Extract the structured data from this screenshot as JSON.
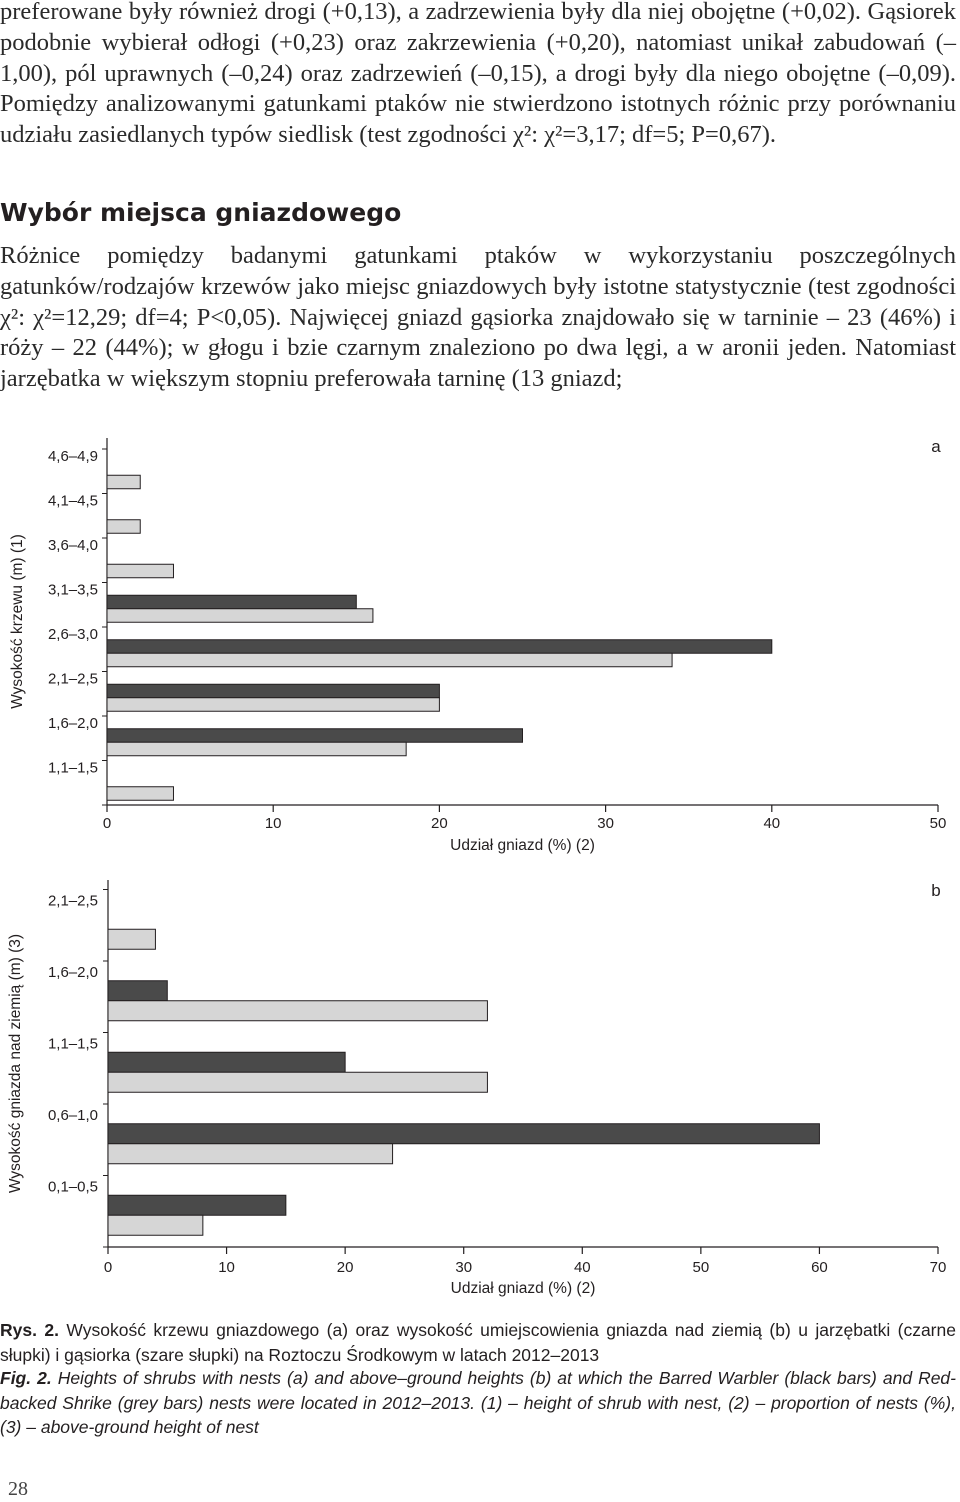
{
  "text": {
    "para1": "preferowane były również drogi (+0,13), a zadrzewienia były dla niej obojętne (+0,02). Gąsiorek podobnie wybierał odłogi (+0,23) oraz zakrzewienia (+0,20), natomiast unikał zabudowań (–1,00), pól uprawnych (–0,24) oraz zadrzewień (–0,15), a drogi były dla niego obojętne (–0,09). Pomiędzy analizowanymi gatunkami ptaków nie stwierdzono istotnych różnic przy porównaniu udziału zasiedlanych typów siedlisk (test zgodności χ²: χ²=3,17; df=5; P=0,67).",
    "heading": "Wybór miejsca gniazdowego",
    "para2": "Różnice pomiędzy badanymi gatunkami ptaków w wykorzystaniu poszczególnych gatunków/rodzajów krzewów jako miejsc gniazdowych były istotne statystycznie (test zgodności χ²: χ²=12,29; df=4; P<0,05). Najwięcej gniazd gąsiorka znajdowało się w tarninie – 23 (46%) i róży – 22 (44%); w głogu i bzie czarnym znaleziono po dwa lęgi, a w aronii jeden. Natomiast jarzębatka w większym stopniu preferowała tarninę (13 gniazd;"
  },
  "caption": {
    "pl_label": "Rys. 2.",
    "pl_text": "Wysokość krzewu gniazdowego (a) oraz wysokość umiejscowienia gniazda nad ziemią (b) u jarzębatki (czarne słupki) i gąsiorka (szare słupki) na Roztoczu Środkowym w latach 2012–2013",
    "en_label": "Fig. 2.",
    "en_text": "Heights of shrubs with nests (a) and above–ground heights (b) at which the Barred Warbler (black bars) and Red-backed Shrike (grey bars) nests were located in 2012–2013. (1) – height of shrub with nest, (2) – proportion of nests (%), (3) – above-ground height of nest"
  },
  "page_number": "28",
  "colors": {
    "barred_warbler": "#4a4a4a",
    "red_backed_shrike": "#d6d6d6",
    "outline": "#231f20"
  },
  "chart_data": [
    {
      "type": "bar",
      "orientation": "horizontal",
      "panel_label": "a",
      "categories": [
        "4,6–4,9",
        "4,1–4,5",
        "3,6–4,0",
        "3,1–3,5",
        "2,6–3,0",
        "2,1–2,5",
        "1,6–2,0",
        "1,1–1,5"
      ],
      "series": [
        {
          "values": [
            0,
            0,
            0,
            15,
            40,
            20,
            25,
            0
          ],
          "color": "#4a4a4a"
        },
        {
          "values": [
            2,
            2,
            4,
            16,
            34,
            20,
            18,
            4
          ],
          "color": "#d6d6d6"
        }
      ],
      "xlabel": "Udział gniazd (%) (2)",
      "ylabel": "Wysokość krzewu (m) (1)",
      "xlim": [
        0,
        50
      ],
      "xticks": [
        "0",
        "10",
        "20",
        "30",
        "40",
        "50"
      ],
      "grid": false
    },
    {
      "type": "bar",
      "orientation": "horizontal",
      "panel_label": "b",
      "categories": [
        "2,1–2,5",
        "1,6–2,0",
        "1,1–1,5",
        "0,6–1,0",
        "0,1–0,5"
      ],
      "series": [
        {
          "values": [
            0,
            5,
            20,
            60,
            15
          ],
          "color": "#4a4a4a"
        },
        {
          "values": [
            4,
            32,
            32,
            24,
            8
          ],
          "color": "#d6d6d6"
        }
      ],
      "xlabel": "Udział gniazd (%) (2)",
      "ylabel": "Wysokość gniazda nad ziemią (m) (3)",
      "xlim": [
        0,
        70
      ],
      "xticks": [
        "0",
        "10",
        "20",
        "30",
        "40",
        "50",
        "60",
        "70"
      ],
      "grid": false
    }
  ]
}
